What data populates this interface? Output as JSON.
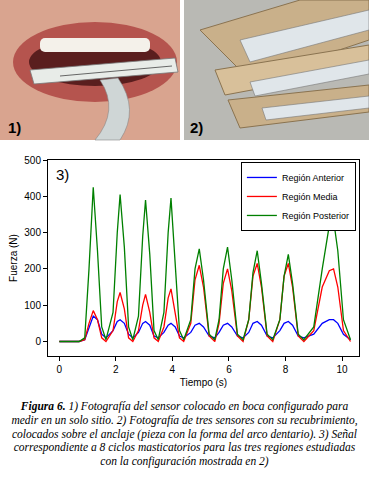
{
  "panels": [
    {
      "label": "1)"
    },
    {
      "label": "2)"
    }
  ],
  "chart_data": {
    "type": "line",
    "panel_label": "3)",
    "x_label": "Tiempo (s)",
    "y_label": "Fuerza (N)",
    "x": [
      0,
      0.7,
      0.9,
      1.05,
      1.2,
      1.35,
      1.5,
      1.65,
      1.9,
      2.05,
      2.15,
      2.3,
      2.45,
      2.6,
      2.8,
      2.95,
      3.05,
      3.2,
      3.35,
      3.5,
      3.7,
      3.85,
      3.95,
      4.1,
      4.25,
      4.4,
      4.65,
      4.8,
      4.95,
      5.1,
      5.3,
      5.5,
      5.65,
      5.8,
      5.95,
      6.1,
      6.3,
      6.5,
      6.7,
      6.85,
      7.0,
      7.15,
      7.35,
      7.55,
      7.8,
      7.95,
      8.1,
      8.25,
      8.45,
      8.65,
      9.0,
      9.3,
      9.55,
      9.7,
      9.85,
      10.05,
      10.3
    ],
    "series": [
      {
        "name": "Región Anterior",
        "color": "#0000ff",
        "values": [
          0,
          0,
          5,
          40,
          70,
          60,
          20,
          10,
          30,
          55,
          60,
          50,
          20,
          10,
          25,
          50,
          55,
          45,
          15,
          10,
          25,
          45,
          50,
          40,
          15,
          10,
          25,
          45,
          50,
          40,
          15,
          10,
          25,
          45,
          50,
          40,
          15,
          10,
          25,
          50,
          55,
          45,
          15,
          10,
          30,
          50,
          55,
          45,
          15,
          10,
          20,
          50,
          60,
          60,
          50,
          20,
          5
        ]
      },
      {
        "name": "Región Media",
        "color": "#ff0000",
        "values": [
          0,
          0,
          5,
          50,
          85,
          60,
          10,
          0,
          30,
          110,
          135,
          90,
          10,
          0,
          30,
          100,
          130,
          80,
          10,
          0,
          40,
          120,
          145,
          80,
          10,
          0,
          50,
          170,
          210,
          150,
          15,
          0,
          50,
          160,
          200,
          140,
          15,
          0,
          60,
          180,
          215,
          150,
          15,
          0,
          60,
          180,
          215,
          150,
          15,
          0,
          30,
          150,
          195,
          200,
          150,
          30,
          0
        ]
      },
      {
        "name": "Región Posterior",
        "color": "#008000",
        "values": [
          0,
          0,
          10,
          200,
          425,
          250,
          40,
          5,
          80,
          300,
          405,
          260,
          40,
          5,
          70,
          290,
          390,
          240,
          30,
          5,
          80,
          300,
          395,
          200,
          30,
          5,
          60,
          200,
          255,
          170,
          20,
          5,
          60,
          200,
          260,
          170,
          20,
          5,
          60,
          190,
          250,
          160,
          20,
          5,
          60,
          180,
          240,
          160,
          20,
          5,
          40,
          200,
          320,
          335,
          250,
          60,
          5
        ]
      }
    ],
    "xlim": [
      -0.4,
      10.6
    ],
    "xticks": [
      0,
      2,
      4,
      6,
      8,
      10
    ],
    "ylim": [
      -40,
      500
    ],
    "yticks": [
      0,
      100,
      200,
      300,
      400,
      500
    ],
    "legend": "top-right",
    "grid": false
  },
  "caption": {
    "label": "Figura 6.",
    "text": "1) Fotografía del sensor colocado en boca configurado para medir en un solo sitio. 2) Fotografía de tres sensores con su recubrimiento, colocados sobre el anclaje (pieza con la forma del arco dentario). 3) Señal correspondiente a 8 ciclos masticatorios para las tres regiones estudiadas con la configuración mostrada en 2)"
  }
}
